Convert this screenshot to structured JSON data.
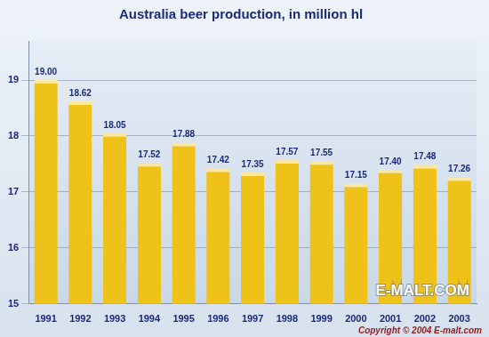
{
  "chart_data": {
    "type": "bar",
    "title": "Australia beer production, in million hl",
    "categories": [
      "1991",
      "1992",
      "1993",
      "1994",
      "1995",
      "1996",
      "1997",
      "1998",
      "1999",
      "2000",
      "2001",
      "2002",
      "2003"
    ],
    "values": [
      19.0,
      18.62,
      18.05,
      17.52,
      17.88,
      17.42,
      17.35,
      17.57,
      17.55,
      17.15,
      17.4,
      17.48,
      17.26
    ],
    "value_labels": [
      "19.00",
      "18.62",
      "18.05",
      "17.52",
      "17.88",
      "17.42",
      "17.35",
      "17.57",
      "17.55",
      "17.15",
      "17.40",
      "17.48",
      "17.26"
    ],
    "color": "#efc21a",
    "ylim": [
      15,
      19.7
    ],
    "yticks": [
      15,
      16,
      17,
      18,
      19
    ],
    "grid": true,
    "data_labels": true,
    "annotations": [
      "E-MALT.COM",
      "Copyright © 2004 E-malt.com"
    ]
  }
}
